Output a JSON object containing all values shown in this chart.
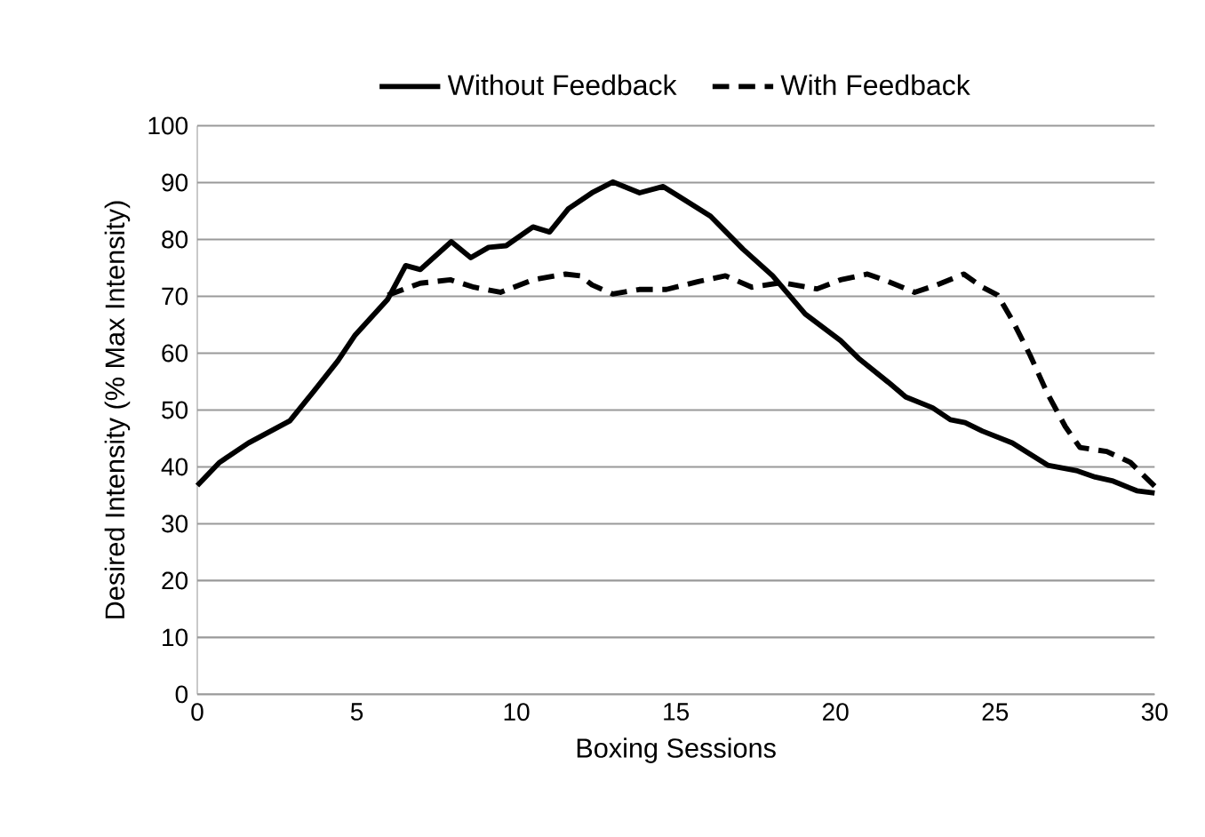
{
  "chart_data": {
    "type": "line",
    "xlabel": "Boxing Sessions",
    "ylabel": "Desired Intensity (% Max Intensity)",
    "xlim": [
      0,
      30
    ],
    "ylim": [
      0,
      100
    ],
    "xticks": [
      0,
      5,
      10,
      15,
      20,
      25,
      30
    ],
    "yticks": [
      0,
      10,
      20,
      30,
      40,
      50,
      60,
      70,
      80,
      90,
      100
    ],
    "grid": "y",
    "legend": "top",
    "marker": "none",
    "series": [
      {
        "name": "Without Feedback",
        "color": "#000000",
        "line_style": "solid",
        "x": [
          0,
          0.7,
          1.6,
          2.9,
          3.65,
          4.4,
          4.95,
          5.97,
          6.53,
          6.99,
          7.96,
          8.57,
          9.13,
          9.68,
          10.52,
          11.04,
          11.63,
          12.37,
          13.02,
          13.86,
          14.6,
          16.08,
          17.1,
          18.03,
          19.05,
          20.16,
          20.72,
          21.65,
          22.2,
          23.04,
          23.6,
          24.06,
          24.6,
          25.54,
          26.65,
          27.58,
          28.14,
          28.7,
          29.44,
          30
        ],
        "values": [
          36.7,
          40.8,
          44.2,
          48.1,
          53.3,
          58.6,
          63.2,
          69.5,
          75.4,
          74.7,
          79.6,
          76.8,
          78.6,
          78.9,
          82.2,
          81.3,
          85.4,
          88.2,
          90.1,
          88.2,
          89.3,
          84.1,
          78.3,
          73.6,
          66.9,
          62.2,
          59.1,
          54.9,
          52.3,
          50.4,
          48.3,
          47.8,
          46.3,
          44.2,
          40.3,
          39.3,
          38.2,
          37.5,
          35.8,
          35.4
        ]
      },
      {
        "name": "With Feedback",
        "color": "#000000",
        "line_style": "dashed",
        "x": [
          5.97,
          6.99,
          7.93,
          8.67,
          9.5,
          10.52,
          11.54,
          12.0,
          12.37,
          13.02,
          13.85,
          14.7,
          15.7,
          16.55,
          17.38,
          18.3,
          19.42,
          20.16,
          21.0,
          21.65,
          22.48,
          23.13,
          24.02,
          24.6,
          25.08,
          25.54,
          26.1,
          26.65,
          27.2,
          27.66,
          28.5,
          29.24,
          30
        ],
        "values": [
          70.2,
          72.3,
          72.9,
          71.6,
          70.7,
          72.9,
          73.9,
          73.6,
          72.0,
          70.4,
          71.2,
          71.2,
          72.6,
          73.6,
          71.6,
          72.4,
          71.3,
          72.9,
          73.9,
          72.6,
          70.7,
          71.9,
          73.9,
          71.6,
          70.2,
          65.8,
          59.6,
          52.8,
          47.1,
          43.4,
          42.7,
          40.8,
          36.6
        ]
      }
    ]
  }
}
